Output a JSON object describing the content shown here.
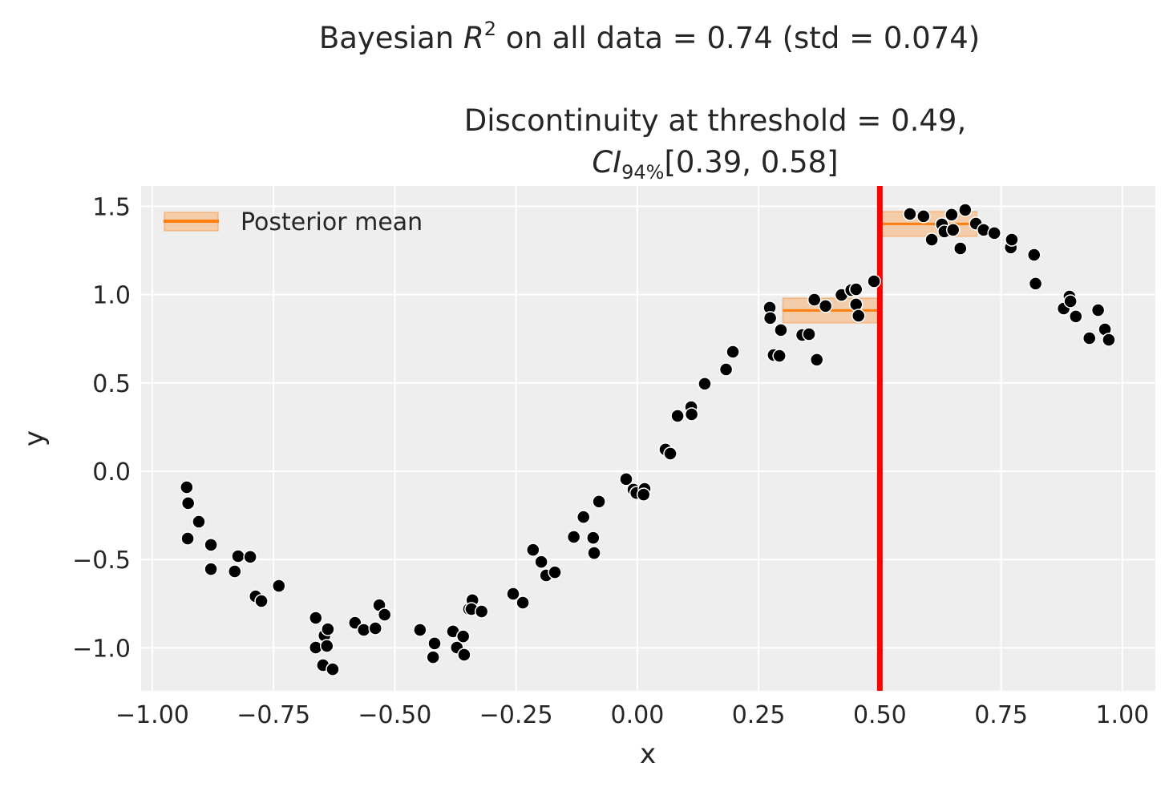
{
  "chart_data": {
    "type": "scatter",
    "title": {
      "line1_prefix": "Bayesian ",
      "line1_var": "R",
      "line1_sup": "2",
      "line1_suffix": " on all data = 0.74 (std = 0.074)",
      "line2": "Discontinuity at threshold = 0.49,",
      "line3_var": "CI",
      "line3_sub": "94%",
      "line3_suffix": "[0.39, 0.58]"
    },
    "xlabel": "x",
    "ylabel": "y",
    "xlim": [
      -1.023,
      1.068
    ],
    "ylim": [
      -1.243,
      1.615
    ],
    "xticks": [
      -1.0,
      -0.75,
      -0.5,
      -0.25,
      0.0,
      0.25,
      0.5,
      0.75,
      1.0
    ],
    "xtick_labels": [
      "−1.00",
      "−0.75",
      "−0.50",
      "−0.25",
      "0.00",
      "0.25",
      "0.50",
      "0.75",
      "1.00"
    ],
    "yticks": [
      -1.0,
      -0.5,
      0.0,
      0.5,
      1.0,
      1.5
    ],
    "ytick_labels": [
      "−1.0",
      "−0.5",
      "0.0",
      "0.5",
      "1.0",
      "1.5"
    ],
    "grid": true,
    "background": "#eeeeee",
    "legend": {
      "placement": "top-left",
      "entries": [
        {
          "label": "Posterior mean",
          "color": "#ff7f0e"
        }
      ]
    },
    "threshold": {
      "x": 0.5,
      "color": "#ff0000"
    },
    "posterior_mean": [
      {
        "x": [
          0.3,
          0.5
        ],
        "mean": 0.91,
        "lower": 0.84,
        "upper": 0.98
      },
      {
        "x": [
          0.5,
          0.7
        ],
        "mean": 1.4,
        "lower": 1.33,
        "upper": 1.47
      }
    ],
    "points_color": "#000000",
    "points": [
      [
        -0.929,
        -0.091
      ],
      [
        -0.926,
        -0.181
      ],
      [
        -0.927,
        -0.381
      ],
      [
        -0.904,
        -0.286
      ],
      [
        -0.879,
        -0.417
      ],
      [
        -0.879,
        -0.554
      ],
      [
        -0.83,
        -0.567
      ],
      [
        -0.823,
        -0.481
      ],
      [
        -0.798,
        -0.485
      ],
      [
        -0.787,
        -0.708
      ],
      [
        -0.775,
        -0.735
      ],
      [
        -0.739,
        -0.649
      ],
      [
        -0.663,
        -0.83
      ],
      [
        -0.663,
        -0.998
      ],
      [
        -0.645,
        -0.93
      ],
      [
        -0.638,
        -0.894
      ],
      [
        -0.64,
        -0.989
      ],
      [
        -0.648,
        -1.098
      ],
      [
        -0.628,
        -1.121
      ],
      [
        -0.582,
        -0.858
      ],
      [
        -0.564,
        -0.898
      ],
      [
        -0.54,
        -0.889
      ],
      [
        -0.532,
        -0.758
      ],
      [
        -0.521,
        -0.812
      ],
      [
        -0.448,
        -0.898
      ],
      [
        -0.418,
        -0.975
      ],
      [
        -0.421,
        -1.053
      ],
      [
        -0.38,
        -0.907
      ],
      [
        -0.372,
        -0.998
      ],
      [
        -0.359,
        -0.935
      ],
      [
        -0.357,
        -1.039
      ],
      [
        -0.347,
        -0.78
      ],
      [
        -0.34,
        -0.73
      ],
      [
        -0.342,
        -0.78
      ],
      [
        -0.321,
        -0.794
      ],
      [
        -0.256,
        -0.694
      ],
      [
        -0.236,
        -0.744
      ],
      [
        -0.215,
        -0.445
      ],
      [
        -0.198,
        -0.513
      ],
      [
        -0.188,
        -0.59
      ],
      [
        -0.17,
        -0.572
      ],
      [
        -0.131,
        -0.372
      ],
      [
        -0.111,
        -0.259
      ],
      [
        -0.091,
        -0.377
      ],
      [
        -0.089,
        -0.463
      ],
      [
        -0.079,
        -0.172
      ],
      [
        -0.023,
        -0.045
      ],
      [
        -0.008,
        -0.104
      ],
      [
        -0.002,
        -0.123
      ],
      [
        0.015,
        -0.1
      ],
      [
        0.013,
        -0.132
      ],
      [
        0.058,
        0.123
      ],
      [
        0.068,
        0.1
      ],
      [
        0.083,
        0.313
      ],
      [
        0.111,
        0.363
      ],
      [
        0.112,
        0.322
      ],
      [
        0.139,
        0.495
      ],
      [
        0.183,
        0.576
      ],
      [
        0.197,
        0.676
      ],
      [
        0.273,
        0.926
      ],
      [
        0.274,
        0.867
      ],
      [
        0.281,
        0.658
      ],
      [
        0.293,
        0.653
      ],
      [
        0.296,
        0.799
      ],
      [
        0.34,
        0.771
      ],
      [
        0.354,
        0.776
      ],
      [
        0.365,
        0.971
      ],
      [
        0.37,
        0.631
      ],
      [
        0.388,
        0.935
      ],
      [
        0.421,
        0.998
      ],
      [
        0.441,
        1.025
      ],
      [
        0.451,
        1.03
      ],
      [
        0.451,
        0.944
      ],
      [
        0.456,
        0.88
      ],
      [
        0.488,
        1.075
      ],
      [
        0.562,
        1.456
      ],
      [
        0.59,
        1.443
      ],
      [
        0.607,
        1.311
      ],
      [
        0.628,
        1.397
      ],
      [
        0.633,
        1.357
      ],
      [
        0.648,
        1.452
      ],
      [
        0.651,
        1.366
      ],
      [
        0.666,
        1.261
      ],
      [
        0.676,
        1.479
      ],
      [
        0.698,
        1.402
      ],
      [
        0.714,
        1.366
      ],
      [
        0.736,
        1.348
      ],
      [
        0.77,
        1.266
      ],
      [
        0.772,
        1.311
      ],
      [
        0.818,
        1.225
      ],
      [
        0.821,
        1.062
      ],
      [
        0.879,
        0.921
      ],
      [
        0.891,
        0.989
      ],
      [
        0.893,
        0.962
      ],
      [
        0.904,
        0.876
      ],
      [
        0.932,
        0.753
      ],
      [
        0.95,
        0.912
      ],
      [
        0.964,
        0.803
      ],
      [
        0.972,
        0.744
      ]
    ]
  }
}
